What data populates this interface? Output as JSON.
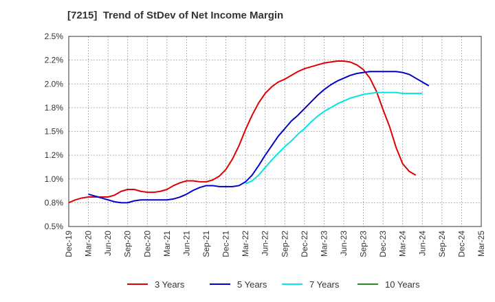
{
  "title": "[7215]  Trend of StDev of Net Income Margin",
  "chart_data": {
    "type": "line",
    "title": "[7215]  Trend of StDev of Net Income Margin",
    "xlabel": "",
    "ylabel": "",
    "ylim": [
      0.5,
      2.5
    ],
    "y_ticks": [
      "0.5%",
      "0.8%",
      "1.0%",
      "1.2%",
      "1.5%",
      "1.8%",
      "2.0%",
      "2.2%",
      "2.5%"
    ],
    "x_ticks": [
      "Dec-19",
      "Mar-20",
      "Jun-20",
      "Sep-20",
      "Dec-20",
      "Mar-21",
      "Jun-21",
      "Sep-21",
      "Dec-21",
      "Mar-22",
      "Jun-22",
      "Sep-22",
      "Dec-22",
      "Mar-23",
      "Jun-23",
      "Sep-23",
      "Dec-23",
      "Mar-24",
      "Jun-24",
      "Sep-24",
      "Dec-24",
      "Mar-25"
    ],
    "grid": true,
    "legend_position": "bottom",
    "series": [
      {
        "name": "3 Years",
        "color": "#dd0000",
        "start_tick": 0,
        "values": [
          0.75,
          0.78,
          0.8,
          0.81,
          0.81,
          0.81,
          0.81,
          0.83,
          0.87,
          0.89,
          0.89,
          0.87,
          0.86,
          0.86,
          0.87,
          0.89,
          0.93,
          0.96,
          0.98,
          0.98,
          0.97,
          0.97,
          0.99,
          1.03,
          1.1,
          1.21,
          1.35,
          1.52,
          1.67,
          1.8,
          1.9,
          1.97,
          2.02,
          2.05,
          2.09,
          2.13,
          2.16,
          2.18,
          2.2,
          2.22,
          2.23,
          2.24,
          2.24,
          2.23,
          2.2,
          2.15,
          2.06,
          1.92,
          1.73,
          1.55,
          1.33,
          1.16,
          1.08,
          1.04
        ]
      },
      {
        "name": "5 Years",
        "color": "#0000cc",
        "start_tick": 1,
        "values": [
          0.84,
          0.82,
          0.8,
          0.78,
          0.76,
          0.75,
          0.75,
          0.77,
          0.78,
          0.78,
          0.78,
          0.78,
          0.78,
          0.79,
          0.81,
          0.84,
          0.88,
          0.91,
          0.93,
          0.93,
          0.92,
          0.92,
          0.92,
          0.93,
          0.97,
          1.04,
          1.14,
          1.25,
          1.35,
          1.45,
          1.53,
          1.61,
          1.67,
          1.74,
          1.81,
          1.88,
          1.94,
          1.99,
          2.03,
          2.06,
          2.09,
          2.11,
          2.12,
          2.13,
          2.13,
          2.13,
          2.13,
          2.13,
          2.12,
          2.1,
          2.06,
          2.02,
          1.98
        ]
      },
      {
        "name": "7 Years",
        "color": "#00e5e5",
        "start_tick": 9,
        "values": [
          0.95,
          0.98,
          1.04,
          1.12,
          1.2,
          1.27,
          1.34,
          1.4,
          1.47,
          1.53,
          1.6,
          1.66,
          1.71,
          1.75,
          1.79,
          1.82,
          1.85,
          1.87,
          1.89,
          1.9,
          1.91,
          1.91,
          1.91,
          1.91,
          1.9,
          1.9,
          1.9,
          1.9
        ]
      },
      {
        "name": "10 Years",
        "color": "#228B22",
        "start_tick": 0,
        "values": []
      }
    ]
  }
}
